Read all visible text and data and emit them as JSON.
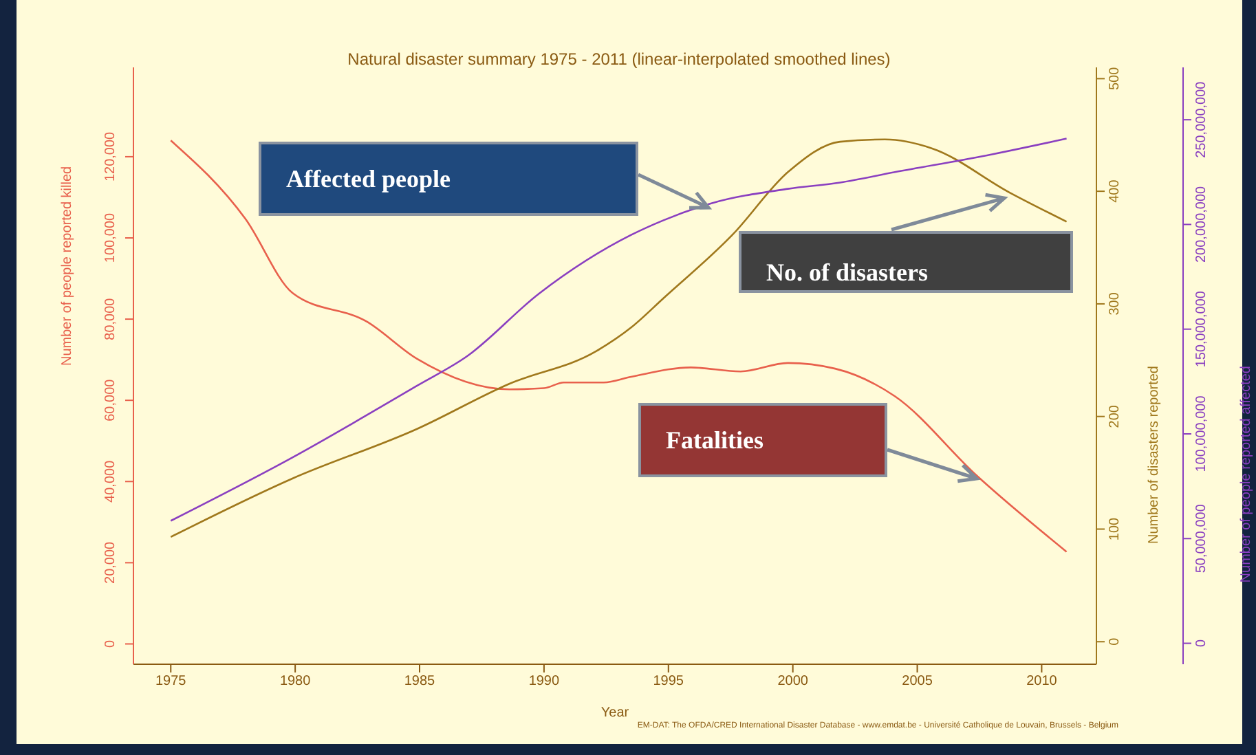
{
  "chart_data": {
    "type": "line",
    "title": "Natural disaster summary 1975 - 2011 (linear-interpolated smoothed lines)",
    "xlabel": "Year",
    "ylabel": "Number of people reported killed",
    "y2label": "Number of disasters reported",
    "y3label": "Number of people reported affected",
    "xlim": [
      1973.5,
      2012.2
    ],
    "xticks": [
      1975,
      1980,
      1985,
      1990,
      1995,
      2000,
      2005,
      2010
    ],
    "ylim": [
      -5000,
      142000
    ],
    "yticks": [
      0,
      {
        "value": 20000,
        "label": "20,000"
      },
      {
        "value": 40000,
        "label": "40,000"
      },
      {
        "value": 60000,
        "label": "60,000"
      },
      {
        "value": 80000,
        "label": "80,000"
      },
      {
        "value": 100000,
        "label": "100,000"
      },
      {
        "value": 120000,
        "label": "120,000"
      }
    ],
    "y2lim": [
      -20,
      510
    ],
    "y2ticks": [
      0,
      100,
      200,
      300,
      400,
      500
    ],
    "y3lim": [
      -10000000,
      275000000
    ],
    "y3ticks": [
      0,
      {
        "value": 50000000,
        "label": "50,000,000"
      },
      {
        "value": 100000000,
        "label": "100,000,000"
      },
      {
        "value": 150000000,
        "label": "150,000,000"
      },
      {
        "value": 200000000,
        "label": "200,000,000"
      },
      {
        "value": 250000000,
        "label": "250,000,000"
      }
    ],
    "series": [
      {
        "color": "#e8604c",
        "x": [
          1975,
          1978,
          1979.9,
          1982.9,
          1984.9,
          1988.6,
          1990,
          1990.8,
          1992.4,
          1993.5,
          1995.9,
          1997.9,
          1999.8,
          2001.7,
          2004.1,
          2007.4,
          2011
        ],
        "values": [
          124000,
          104700,
          86400,
          79300,
          70200,
          62700,
          63000,
          64400,
          64400,
          65800,
          68100,
          67100,
          69200,
          67800,
          61000,
          41400,
          22700
        ]
      },
      {
        "color": "#a0781c",
        "axis": "y2",
        "x": [
          1975,
          1979.9,
          1984.9,
          1988.6,
          1992.1,
          1993.5,
          1994.8,
          1997.6,
          1999.8,
          2001.9,
          2003.7,
          2005.6,
          2008.7,
          2011
        ],
        "values": [
          93,
          145,
          189,
          229,
          258,
          279,
          305,
          362,
          417,
          444,
          446,
          438,
          399,
          373
        ]
      },
      {
        "color": "#8a3fc0",
        "axis": "y3",
        "x": [
          1975,
          1979.9,
          1984.9,
          1986.9,
          1989.8,
          1993.5,
          1994.8,
          1996.7,
          1999.8,
          2001.9,
          2004.1,
          2007.8,
          2011
        ],
        "values": [
          58500000,
          88800000,
          123000000,
          137000000,
          167000000,
          195000000,
          202000000,
          210000000,
          217000000,
          220000000,
          225000000,
          233000000,
          241000000
        ]
      }
    ],
    "annotations": [
      "Affected people",
      {
        "text": "No. of disasters",
        "x": 2008.5,
        "y": 109800
      },
      "Fatalities",
      "EM-DAT: The OFDA/CRED International Disaster Database - www.emdat.be - Université Catholique de Louvain, Brussels - Belgium"
    ],
    "grid": false,
    "legend": false,
    "marker": "none",
    "line_style": "solid"
  }
}
